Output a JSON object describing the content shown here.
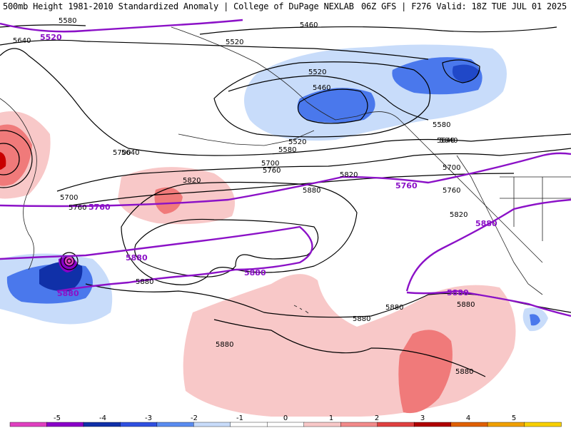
{
  "header": {
    "left_title": "500mb Height 1981-2010 Standardized Anomaly | College of DuPage NEXLAB",
    "right_title": "06Z GFS | F276 Valid: 18Z TUE JUL 01 2025"
  },
  "colors": {
    "contour_black": "#000000",
    "contour_purple": "#8b11c7",
    "coast": "#222222"
  },
  "contour_labels": {
    "black": [
      "5580",
      "5640",
      "5460",
      "5520",
      "5700",
      "5640",
      "5520",
      "5460",
      "5580",
      "5520",
      "5580",
      "5640",
      "5700",
      "5760",
      "5820",
      "5820",
      "5880",
      "5700",
      "5760",
      "5880",
      "5880",
      "5880",
      "5880",
      "5880",
      "5640",
      "5700",
      "5760",
      "5820",
      "5880"
    ],
    "purple": [
      "5520",
      "5760",
      "5760",
      "5880",
      "5880",
      "5880",
      "5880",
      "5880"
    ]
  },
  "legend": {
    "ticks": [
      "-5",
      "-4",
      "-3",
      "-2",
      "-1",
      "0",
      "1",
      "2",
      "3",
      "4",
      "5"
    ],
    "colors": [
      "#e040c0",
      "#8a00c8",
      "#1030a8",
      "#3050e0",
      "#5a8cf0",
      "#c8dcfa",
      "#ffffff",
      "#ffffff",
      "#f8c8c8",
      "#f28a8a",
      "#e04040",
      "#b00000",
      "#e06000",
      "#f0a000",
      "#f8d000"
    ]
  }
}
